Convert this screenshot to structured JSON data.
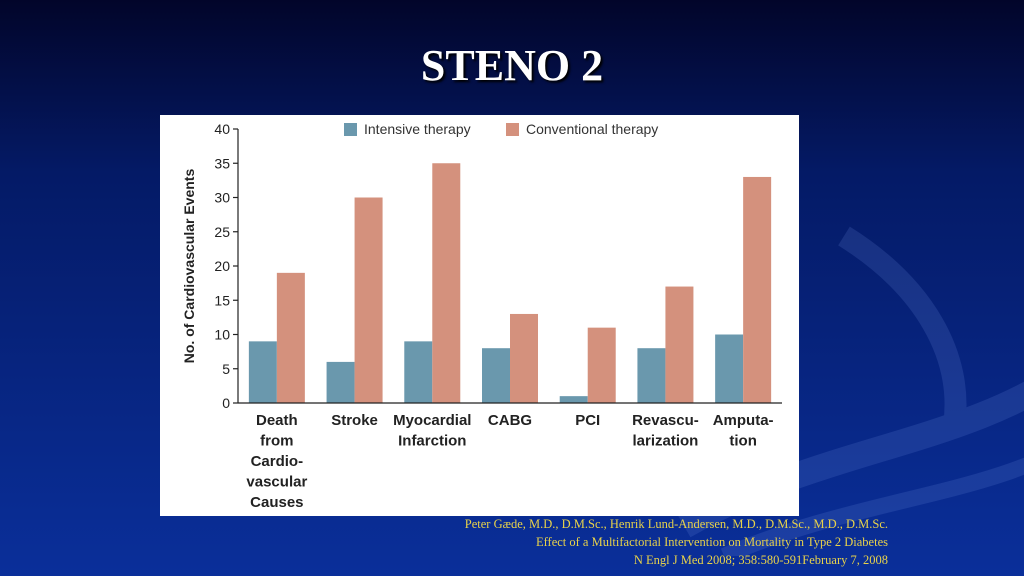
{
  "slide": {
    "title": "STENO 2"
  },
  "colors": {
    "intensive": "#6a98ad",
    "conventional": "#d4917d",
    "citation": "#e8d24a"
  },
  "citation": {
    "authors": "Peter Gæde, M.D., D.M.Sc., Henrik Lund-Andersen, M.D., D.M.Sc., M.D., D.M.Sc.",
    "article": "Effect of a Multifactorial Intervention on Mortality in Type 2 Diabetes",
    "journal": "N Engl J Med 2008; 358:580-591February 7, 2008"
  },
  "chart_data": {
    "type": "bar",
    "title": "",
    "xlabel": "",
    "ylabel": "No. of Cardiovascular Events",
    "ylim": [
      0,
      40
    ],
    "yticks": [
      0,
      5,
      10,
      15,
      20,
      25,
      30,
      35,
      40
    ],
    "grid": false,
    "legend_position": "top",
    "categories": [
      [
        "Death",
        "from",
        "Cardio-",
        "vascular",
        "Causes"
      ],
      [
        "Stroke"
      ],
      [
        "Myocardial",
        "Infarction"
      ],
      [
        "CABG"
      ],
      [
        "PCI"
      ],
      [
        "Revascu-",
        "larization"
      ],
      [
        "Amputa-",
        "tion"
      ]
    ],
    "series": [
      {
        "name": "Intensive therapy",
        "values": [
          9,
          6,
          9,
          8,
          1,
          8,
          10
        ]
      },
      {
        "name": "Conventional therapy",
        "values": [
          19,
          30,
          35,
          13,
          11,
          17,
          33
        ]
      }
    ]
  }
}
